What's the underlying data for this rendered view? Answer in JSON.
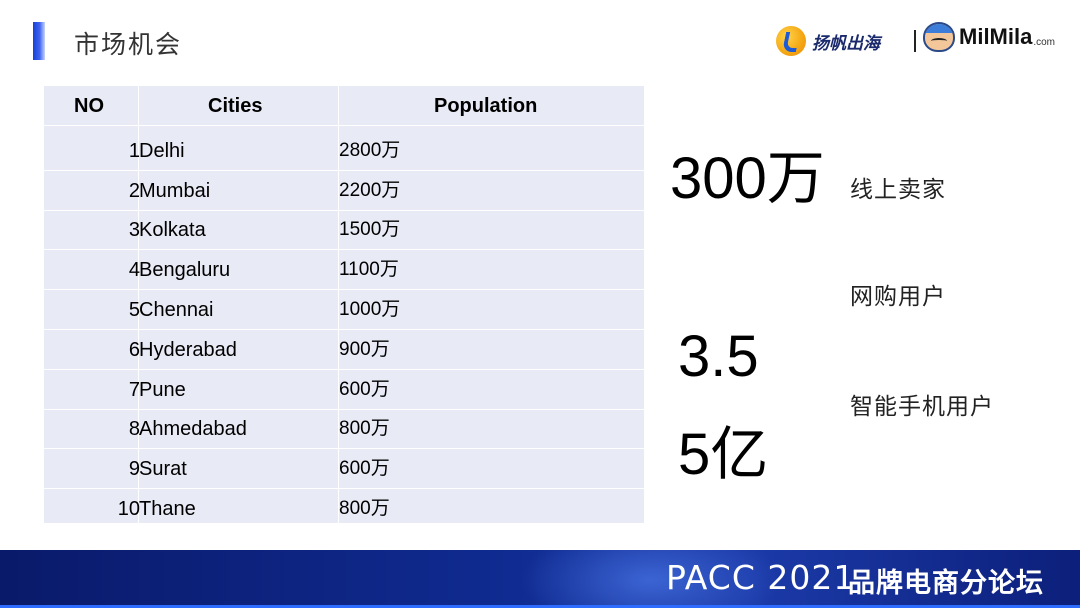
{
  "header": {
    "title": "市场机会",
    "logo_left_text": "扬帆出海",
    "logo_right_text": "MilMila",
    "logo_right_suffix": ".com"
  },
  "table": {
    "columns": [
      "NO",
      "Cities",
      "Population"
    ],
    "rows": [
      {
        "no": "1",
        "city": "Delhi",
        "population": "2800万"
      },
      {
        "no": "2",
        "city": "Mumbai",
        "population": "2200万"
      },
      {
        "no": "3",
        "city": "Kolkata",
        "population": "1500万"
      },
      {
        "no": "4",
        "city": "Bengaluru",
        "population": "1100万"
      },
      {
        "no": "5",
        "city": "Chennai",
        "population": "1000万"
      },
      {
        "no": "6",
        "city": "Hyderabad",
        "population": "900万"
      },
      {
        "no": "7",
        "city": "Pune",
        "population": "600万"
      },
      {
        "no": "8",
        "city": "Ahmedabad",
        "population": "800万"
      },
      {
        "no": "9",
        "city": "Surat",
        "population": "600万"
      },
      {
        "no": "10",
        "city": "Thane",
        "population": "800万"
      }
    ]
  },
  "stats": {
    "sellers_value": "300万",
    "sellers_label": "线上卖家",
    "online_shoppers_label": "网购用户",
    "shoppers_value": "3.5",
    "smartphone_label": "智能手机用户",
    "smartphone_value": "5亿"
  },
  "footer": {
    "event": "PACC 2021",
    "forum": "品牌电商分论坛"
  }
}
